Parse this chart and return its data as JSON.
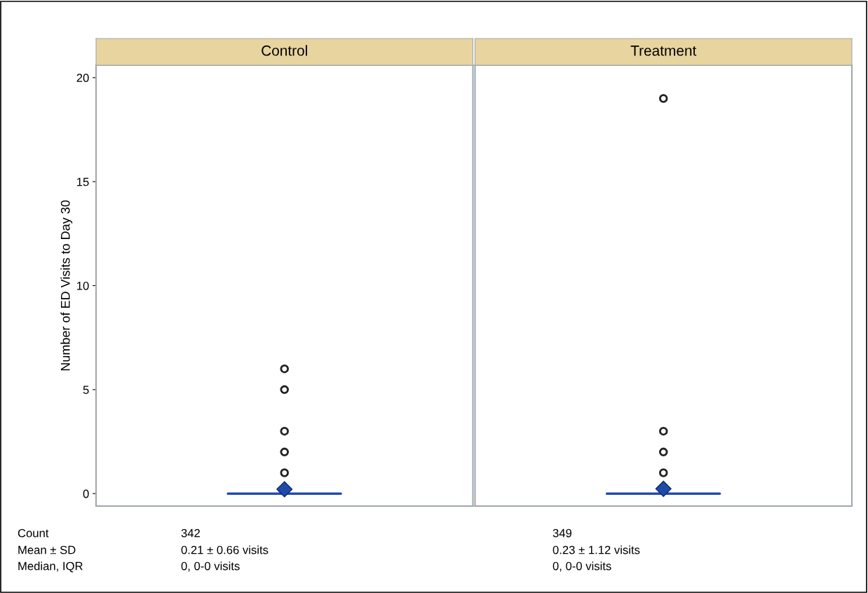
{
  "chart_data": {
    "type": "box",
    "ylabel": "Number of ED Visits to Day 30",
    "categories": [
      "Control",
      "Treatment"
    ],
    "color": "#1f4aa8",
    "ylim": [
      -0.6,
      20.6
    ],
    "yticks": [
      0,
      5,
      10,
      15,
      20
    ],
    "legend": false,
    "marker": "diamond",
    "boxes": [
      {
        "low": 0,
        "q1": 0,
        "median": 0,
        "q3": 0,
        "high": 0,
        "mean": 0.21,
        "outliers": [
          1,
          2,
          3,
          5,
          6
        ]
      },
      {
        "low": 0,
        "q1": 0,
        "median": 0,
        "q3": 0,
        "high": 0,
        "mean": 0.23,
        "outliers": [
          1,
          2,
          3,
          19
        ]
      }
    ],
    "annotations": [
      "Count",
      "Mean ± SD",
      "Median, IQR",
      "342",
      "0.21 ± 0.66 visits",
      "0, 0-0 visits",
      "349",
      "0.23 ± 1.12 visits",
      "0, 0-0 visits"
    ]
  }
}
